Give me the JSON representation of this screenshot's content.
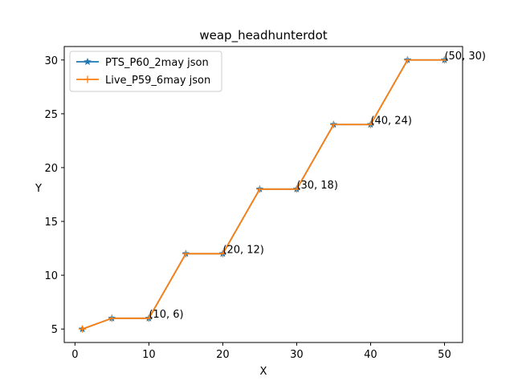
{
  "chart_data": {
    "type": "line",
    "title": "weap_headhunterdot",
    "xlabel": "X",
    "ylabel": "Y",
    "xlim": [
      -1.45,
      52.45
    ],
    "ylim": [
      3.75,
      31.25
    ],
    "xticks": [
      0,
      10,
      20,
      30,
      40,
      50
    ],
    "yticks": [
      5,
      10,
      15,
      20,
      25,
      30
    ],
    "grid": false,
    "legend_position": "top-left",
    "series": [
      {
        "name": "PTS_P60_2may json",
        "color": "#1f77b4",
        "marker": "star",
        "x": [
          1,
          5,
          10,
          15,
          20,
          25,
          30,
          35,
          40,
          45,
          50
        ],
        "y": [
          5,
          6,
          6,
          12,
          12,
          18,
          18,
          24,
          24,
          30,
          30
        ]
      },
      {
        "name": "Live_P59_6may json",
        "color": "#ff7f0e",
        "marker": "plus",
        "x": [
          1,
          5,
          10,
          15,
          20,
          25,
          30,
          35,
          40,
          45,
          50
        ],
        "y": [
          5,
          6,
          6,
          12,
          12,
          18,
          18,
          24,
          24,
          30,
          30
        ]
      }
    ],
    "annotations": [
      {
        "x": 10,
        "y": 6,
        "text": "(10, 6)"
      },
      {
        "x": 20,
        "y": 12,
        "text": "(20, 12)"
      },
      {
        "x": 30,
        "y": 18,
        "text": "(30, 18)"
      },
      {
        "x": 40,
        "y": 24,
        "text": "(40, 24)"
      },
      {
        "x": 50,
        "y": 30,
        "text": "(50, 30)"
      }
    ]
  }
}
